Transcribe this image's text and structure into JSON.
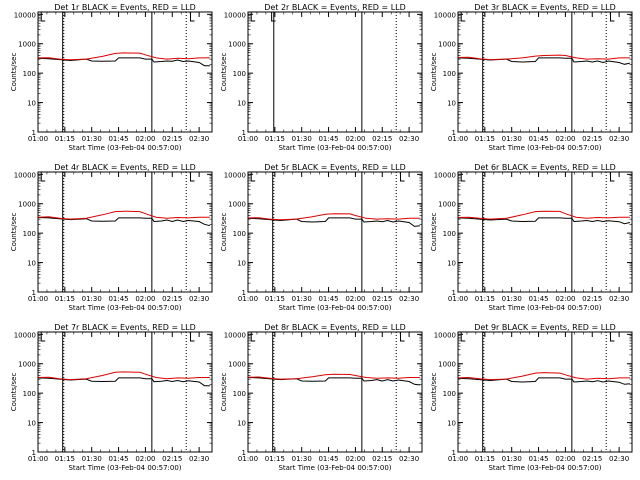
{
  "figure": {
    "xlabel": "Start Time (03-Feb-04 00:57:00)",
    "ylabel": "Counts/sec",
    "legend_text": "BLACK = Events, RED = LLD",
    "colors": {
      "events": "#000000",
      "lld": "#dd0000",
      "axes": "#000000"
    }
  },
  "chart_data": [
    {
      "type": "line",
      "title": "Det 1r",
      "scale_y": "log",
      "ylim": [
        1,
        12000
      ],
      "xlim": [
        1.0,
        2.62
      ],
      "x_ticks": [
        "01:00",
        "01:15",
        "01:30",
        "01:45",
        "02:00",
        "02:15",
        "02:30"
      ],
      "y_ticks": [
        "1",
        "10",
        "100",
        "1000",
        "10000"
      ],
      "series": [
        {
          "name": "Events",
          "x": [
            1.0,
            1.1,
            1.2,
            1.3,
            1.45,
            1.5,
            1.6,
            1.72,
            1.75,
            1.95,
            2.0,
            2.06,
            2.08,
            2.15,
            2.2,
            2.25,
            2.3,
            2.35,
            2.4,
            2.5,
            2.55,
            2.6
          ],
          "y": [
            320,
            310,
            290,
            270,
            300,
            260,
            255,
            260,
            330,
            330,
            300,
            300,
            240,
            250,
            260,
            255,
            280,
            250,
            260,
            230,
            180,
            180
          ]
        },
        {
          "name": "LLD",
          "x": [
            1.0,
            1.1,
            1.2,
            1.3,
            1.45,
            1.6,
            1.72,
            1.8,
            1.95,
            2.0,
            2.1,
            2.2,
            2.3,
            2.4,
            2.5,
            2.6
          ],
          "y": [
            330,
            335,
            300,
            285,
            300,
            370,
            470,
            490,
            480,
            420,
            330,
            300,
            320,
            310,
            330,
            330
          ]
        }
      ],
      "vlines_solid": [
        1.23,
        2.06
      ],
      "vlines_dotted": [
        1.24,
        2.38
      ],
      "spikes": [
        {
          "x": 1.03
        },
        {
          "x": 2.42
        }
      ]
    },
    {
      "type": "line",
      "title": "Det 2r",
      "scale_y": "log",
      "ylim": [
        1,
        12000
      ],
      "xlim": [
        1.0,
        2.62
      ],
      "x_ticks": [
        "01:00",
        "01:15",
        "01:30",
        "01:45",
        "02:00",
        "02:15",
        "02:30"
      ],
      "y_ticks": [
        "1",
        "10",
        "100",
        "1000",
        "10000"
      ],
      "series": [],
      "vlines_solid": [
        1.24,
        2.06
      ],
      "vlines_dotted": [
        2.38
      ],
      "spikes": [
        {
          "x": 1.03
        },
        {
          "x": 1.22
        }
      ]
    },
    {
      "type": "line",
      "title": "Det 3r",
      "scale_y": "log",
      "ylim": [
        1,
        12000
      ],
      "xlim": [
        1.0,
        2.62
      ],
      "x_ticks": [
        "01:00",
        "01:15",
        "01:30",
        "01:45",
        "02:00",
        "02:15",
        "02:30"
      ],
      "y_ticks": [
        "1",
        "10",
        "100",
        "1000",
        "10000"
      ],
      "series": [
        {
          "name": "Events",
          "x": [
            1.0,
            1.1,
            1.2,
            1.3,
            1.45,
            1.5,
            1.6,
            1.72,
            1.75,
            1.95,
            2.0,
            2.06,
            2.08,
            2.15,
            2.2,
            2.25,
            2.3,
            2.35,
            2.4,
            2.5,
            2.55,
            2.6
          ],
          "y": [
            330,
            320,
            300,
            280,
            300,
            250,
            240,
            250,
            330,
            330,
            320,
            320,
            240,
            250,
            260,
            240,
            260,
            230,
            260,
            230,
            200,
            220
          ]
        },
        {
          "name": "LLD",
          "x": [
            1.0,
            1.1,
            1.2,
            1.3,
            1.45,
            1.6,
            1.72,
            1.8,
            1.95,
            2.0,
            2.1,
            2.2,
            2.3,
            2.4,
            2.5,
            2.6
          ],
          "y": [
            340,
            345,
            310,
            290,
            300,
            330,
            380,
            400,
            410,
            400,
            330,
            300,
            310,
            300,
            330,
            330
          ]
        }
      ],
      "vlines_solid": [
        1.23,
        2.06
      ],
      "vlines_dotted": [
        1.24,
        2.38
      ],
      "spikes": [
        {
          "x": 1.03
        },
        {
          "x": 2.42
        }
      ]
    },
    {
      "type": "line",
      "title": "Det 4r",
      "scale_y": "log",
      "ylim": [
        1,
        12000
      ],
      "xlim": [
        1.0,
        2.62
      ],
      "x_ticks": [
        "01:00",
        "01:15",
        "01:30",
        "01:45",
        "02:00",
        "02:15",
        "02:30"
      ],
      "y_ticks": [
        "1",
        "10",
        "100",
        "1000",
        "10000"
      ],
      "series": [
        {
          "name": "Events",
          "x": [
            1.0,
            1.1,
            1.2,
            1.3,
            1.45,
            1.5,
            1.6,
            1.72,
            1.75,
            1.95,
            2.0,
            2.06,
            2.08,
            2.15,
            2.2,
            2.25,
            2.3,
            2.35,
            2.4,
            2.5,
            2.55,
            2.6
          ],
          "y": [
            340,
            330,
            310,
            290,
            310,
            260,
            255,
            260,
            330,
            330,
            320,
            320,
            250,
            260,
            280,
            250,
            280,
            250,
            270,
            250,
            200,
            180
          ]
        },
        {
          "name": "LLD",
          "x": [
            1.0,
            1.1,
            1.2,
            1.3,
            1.45,
            1.6,
            1.72,
            1.8,
            1.95,
            2.0,
            2.1,
            2.2,
            2.3,
            2.4,
            2.5,
            2.6
          ],
          "y": [
            350,
            360,
            320,
            300,
            320,
            420,
            540,
            560,
            540,
            460,
            350,
            320,
            340,
            330,
            350,
            350
          ]
        }
      ],
      "vlines_solid": [
        1.23,
        2.06
      ],
      "vlines_dotted": [
        1.24,
        2.38
      ],
      "spikes": [
        {
          "x": 1.03
        },
        {
          "x": 2.42
        }
      ]
    },
    {
      "type": "line",
      "title": "Det 5r",
      "scale_y": "log",
      "ylim": [
        1,
        12000
      ],
      "xlim": [
        1.0,
        2.62
      ],
      "x_ticks": [
        "01:00",
        "01:15",
        "01:30",
        "01:45",
        "02:00",
        "02:15",
        "02:30"
      ],
      "y_ticks": [
        "1",
        "10",
        "100",
        "1000",
        "10000"
      ],
      "series": [
        {
          "name": "Events",
          "x": [
            1.0,
            1.1,
            1.2,
            1.3,
            1.45,
            1.5,
            1.6,
            1.72,
            1.75,
            1.95,
            2.0,
            2.06,
            2.08,
            2.15,
            2.2,
            2.25,
            2.3,
            2.35,
            2.4,
            2.5,
            2.55,
            2.6
          ],
          "y": [
            320,
            310,
            290,
            270,
            300,
            250,
            240,
            250,
            330,
            330,
            300,
            300,
            240,
            250,
            260,
            245,
            270,
            240,
            260,
            230,
            170,
            180
          ]
        },
        {
          "name": "LLD",
          "x": [
            1.0,
            1.1,
            1.2,
            1.3,
            1.45,
            1.6,
            1.72,
            1.8,
            1.95,
            2.0,
            2.1,
            2.2,
            2.3,
            2.4,
            2.5,
            2.6
          ],
          "y": [
            330,
            335,
            300,
            285,
            300,
            360,
            440,
            460,
            450,
            400,
            320,
            300,
            310,
            300,
            320,
            320
          ]
        }
      ],
      "vlines_solid": [
        1.23,
        2.06
      ],
      "vlines_dotted": [
        1.24,
        2.38
      ],
      "spikes": [
        {
          "x": 1.03
        },
        {
          "x": 2.42
        }
      ]
    },
    {
      "type": "line",
      "title": "Det 6r",
      "scale_y": "log",
      "ylim": [
        1,
        12000
      ],
      "xlim": [
        1.0,
        2.62
      ],
      "x_ticks": [
        "01:00",
        "01:15",
        "01:30",
        "01:45",
        "02:00",
        "02:15",
        "02:30"
      ],
      "y_ticks": [
        "1",
        "10",
        "100",
        "1000",
        "10000"
      ],
      "series": [
        {
          "name": "Events",
          "x": [
            1.0,
            1.1,
            1.2,
            1.3,
            1.45,
            1.5,
            1.6,
            1.72,
            1.75,
            1.95,
            2.0,
            2.06,
            2.08,
            2.15,
            2.2,
            2.25,
            2.3,
            2.35,
            2.4,
            2.5,
            2.55,
            2.6
          ],
          "y": [
            330,
            320,
            300,
            280,
            300,
            260,
            250,
            255,
            330,
            330,
            320,
            320,
            250,
            260,
            270,
            250,
            270,
            250,
            265,
            245,
            210,
            230
          ]
        },
        {
          "name": "LLD",
          "x": [
            1.0,
            1.1,
            1.2,
            1.3,
            1.45,
            1.6,
            1.72,
            1.8,
            1.95,
            2.0,
            2.1,
            2.2,
            2.3,
            2.4,
            2.5,
            2.6
          ],
          "y": [
            340,
            350,
            320,
            300,
            320,
            420,
            540,
            560,
            550,
            460,
            350,
            320,
            340,
            330,
            350,
            350
          ]
        }
      ],
      "vlines_solid": [
        1.23,
        2.06
      ],
      "vlines_dotted": [
        1.24,
        2.38
      ],
      "spikes": [
        {
          "x": 1.03
        },
        {
          "x": 2.42
        }
      ]
    },
    {
      "type": "line",
      "title": "Det 7r",
      "scale_y": "log",
      "ylim": [
        1,
        12000
      ],
      "xlim": [
        1.0,
        2.62
      ],
      "x_ticks": [
        "01:00",
        "01:15",
        "01:30",
        "01:45",
        "02:00",
        "02:15",
        "02:30"
      ],
      "y_ticks": [
        "1",
        "10",
        "100",
        "1000",
        "10000"
      ],
      "series": [
        {
          "name": "Events",
          "x": [
            1.0,
            1.1,
            1.2,
            1.3,
            1.45,
            1.5,
            1.6,
            1.72,
            1.75,
            1.95,
            2.0,
            2.06,
            2.08,
            2.15,
            2.2,
            2.25,
            2.3,
            2.35,
            2.4,
            2.5,
            2.55,
            2.6
          ],
          "y": [
            330,
            320,
            300,
            280,
            300,
            255,
            250,
            255,
            330,
            330,
            310,
            310,
            245,
            255,
            270,
            250,
            270,
            245,
            265,
            240,
            180,
            180
          ]
        },
        {
          "name": "LLD",
          "x": [
            1.0,
            1.1,
            1.2,
            1.3,
            1.45,
            1.6,
            1.72,
            1.8,
            1.95,
            2.0,
            2.1,
            2.2,
            2.3,
            2.4,
            2.5,
            2.6
          ],
          "y": [
            340,
            350,
            310,
            290,
            310,
            400,
            510,
            530,
            510,
            440,
            340,
            310,
            330,
            320,
            340,
            340
          ]
        }
      ],
      "vlines_solid": [
        1.23,
        2.06
      ],
      "vlines_dotted": [
        1.24,
        2.38
      ],
      "spikes": [
        {
          "x": 1.03
        },
        {
          "x": 2.42
        }
      ]
    },
    {
      "type": "line",
      "title": "Det 8r",
      "scale_y": "log",
      "ylim": [
        1,
        12000
      ],
      "xlim": [
        1.0,
        2.62
      ],
      "x_ticks": [
        "01:00",
        "01:15",
        "01:30",
        "01:45",
        "02:00",
        "02:15",
        "02:30"
      ],
      "y_ticks": [
        "1",
        "10",
        "100",
        "1000",
        "10000"
      ],
      "series": [
        {
          "name": "Events",
          "x": [
            1.0,
            1.1,
            1.2,
            1.3,
            1.45,
            1.5,
            1.6,
            1.72,
            1.75,
            1.95,
            2.0,
            2.06,
            2.08,
            2.15,
            2.2,
            2.25,
            2.3,
            2.35,
            2.4,
            2.5,
            2.55,
            2.6
          ],
          "y": [
            340,
            330,
            310,
            290,
            310,
            260,
            255,
            260,
            330,
            330,
            320,
            320,
            260,
            270,
            290,
            260,
            290,
            260,
            280,
            250,
            200,
            190
          ]
        },
        {
          "name": "LLD",
          "x": [
            1.0,
            1.1,
            1.2,
            1.3,
            1.45,
            1.6,
            1.72,
            1.8,
            1.95,
            2.0,
            2.1,
            2.2,
            2.3,
            2.4,
            2.5,
            2.6
          ],
          "y": [
            350,
            355,
            320,
            300,
            310,
            360,
            420,
            440,
            430,
            400,
            340,
            320,
            330,
            320,
            340,
            340
          ]
        }
      ],
      "vlines_solid": [
        1.23,
        2.06
      ],
      "vlines_dotted": [
        1.24,
        2.38
      ],
      "spikes": [
        {
          "x": 1.03
        },
        {
          "x": 2.42
        }
      ]
    },
    {
      "type": "line",
      "title": "Det 9r",
      "scale_y": "log",
      "ylim": [
        1,
        12000
      ],
      "xlim": [
        1.0,
        2.62
      ],
      "x_ticks": [
        "01:00",
        "01:15",
        "01:30",
        "01:45",
        "02:00",
        "02:15",
        "02:30"
      ],
      "y_ticks": [
        "1",
        "10",
        "100",
        "1000",
        "10000"
      ],
      "series": [
        {
          "name": "Events",
          "x": [
            1.0,
            1.1,
            1.2,
            1.3,
            1.45,
            1.5,
            1.6,
            1.72,
            1.75,
            1.95,
            2.0,
            2.06,
            2.08,
            2.15,
            2.2,
            2.25,
            2.3,
            2.35,
            2.4,
            2.5,
            2.55,
            2.6
          ],
          "y": [
            320,
            310,
            290,
            270,
            300,
            250,
            240,
            250,
            330,
            330,
            300,
            300,
            240,
            250,
            260,
            245,
            265,
            240,
            260,
            235,
            200,
            210
          ]
        },
        {
          "name": "LLD",
          "x": [
            1.0,
            1.1,
            1.2,
            1.3,
            1.45,
            1.6,
            1.72,
            1.8,
            1.95,
            2.0,
            2.1,
            2.2,
            2.3,
            2.4,
            2.5,
            2.6
          ],
          "y": [
            330,
            340,
            310,
            290,
            300,
            380,
            480,
            500,
            480,
            420,
            330,
            300,
            320,
            310,
            330,
            330
          ]
        }
      ],
      "vlines_solid": [
        1.23,
        2.06
      ],
      "vlines_dotted": [
        1.24,
        2.38
      ],
      "spikes": [
        {
          "x": 1.03
        },
        {
          "x": 2.42
        }
      ]
    }
  ]
}
